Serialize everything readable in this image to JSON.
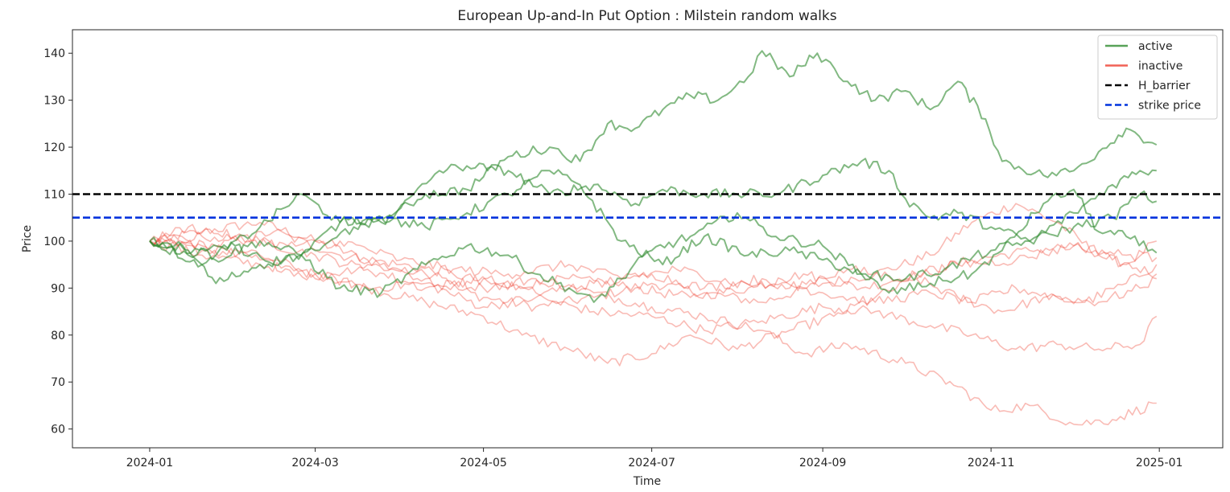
{
  "chart_data": {
    "type": "line",
    "title": "European Up-and-In Put Option : Milstein random walks",
    "xlabel": "Time",
    "ylabel": "Price",
    "x_start": "2024-01-01",
    "x_end": "2024-12-31",
    "xlim": [
      "2023-12-04",
      "2025-01-24"
    ],
    "ylim": [
      56,
      145
    ],
    "xticks": [
      "2024-01",
      "2024-03",
      "2024-05",
      "2024-07",
      "2024-09",
      "2024-11",
      "2025-01"
    ],
    "yticks": [
      60,
      70,
      80,
      90,
      100,
      110,
      120,
      130,
      140
    ],
    "grid": false,
    "legend_position": "top-right",
    "legend": [
      {
        "label": "active",
        "color": "#2e8b2e",
        "style": "solid"
      },
      {
        "label": "inactive",
        "color": "#ee3b2b",
        "style": "solid"
      },
      {
        "label": "H_barrier",
        "color": "#000000",
        "style": "dashed"
      },
      {
        "label": "strike price",
        "color": "#0033dd",
        "style": "dashed"
      }
    ],
    "hlines": [
      {
        "name": "H_barrier",
        "y": 110
      },
      {
        "name": "strike price",
        "y": 105
      }
    ],
    "series": [
      {
        "status": "active",
        "points": [
          [
            "2024-01-01",
            100
          ],
          [
            "2024-01-10",
            99
          ],
          [
            "2024-01-25",
            97
          ],
          [
            "2024-02-10",
            103
          ],
          [
            "2024-02-25",
            110
          ],
          [
            "2024-03-10",
            104
          ],
          [
            "2024-03-25",
            104
          ],
          [
            "2024-04-10",
            110
          ],
          [
            "2024-04-25",
            111
          ],
          [
            "2024-05-10",
            118
          ],
          [
            "2024-05-25",
            120
          ],
          [
            "2024-06-05",
            117
          ],
          [
            "2024-06-15",
            125
          ],
          [
            "2024-06-25",
            124
          ],
          [
            "2024-07-05",
            128
          ],
          [
            "2024-07-15",
            131
          ],
          [
            "2024-07-25",
            130
          ],
          [
            "2024-08-05",
            135
          ],
          [
            "2024-08-10",
            140.5
          ],
          [
            "2024-08-20",
            135
          ],
          [
            "2024-08-30",
            140
          ],
          [
            "2024-09-10",
            134
          ],
          [
            "2024-09-20",
            130
          ],
          [
            "2024-10-01",
            132
          ],
          [
            "2024-10-10",
            128
          ],
          [
            "2024-10-20",
            134
          ],
          [
            "2024-10-30",
            126
          ],
          [
            "2024-11-05",
            117
          ],
          [
            "2024-11-20",
            114
          ],
          [
            "2024-12-01",
            115
          ],
          [
            "2024-12-10",
            119
          ],
          [
            "2024-12-20",
            124
          ],
          [
            "2024-12-31",
            120.5
          ]
        ]
      },
      {
        "status": "active",
        "points": [
          [
            "2024-01-01",
            100
          ],
          [
            "2024-01-15",
            97
          ],
          [
            "2024-02-01",
            99
          ],
          [
            "2024-02-15",
            95
          ],
          [
            "2024-03-01",
            98
          ],
          [
            "2024-03-15",
            103
          ],
          [
            "2024-04-01",
            107
          ],
          [
            "2024-04-15",
            115
          ],
          [
            "2024-04-25",
            116
          ],
          [
            "2024-05-10",
            115
          ],
          [
            "2024-05-25",
            110
          ],
          [
            "2024-06-10",
            112
          ],
          [
            "2024-06-25",
            108
          ],
          [
            "2024-07-05",
            111
          ],
          [
            "2024-07-20",
            110
          ],
          [
            "2024-08-01",
            110
          ],
          [
            "2024-08-15",
            110
          ],
          [
            "2024-09-01",
            114
          ],
          [
            "2024-09-15",
            117
          ],
          [
            "2024-09-25",
            115
          ],
          [
            "2024-10-01",
            109
          ],
          [
            "2024-10-10",
            105
          ],
          [
            "2024-10-20",
            106
          ],
          [
            "2024-11-01",
            103
          ],
          [
            "2024-11-15",
            100
          ],
          [
            "2024-12-01",
            106
          ],
          [
            "2024-12-15",
            112
          ],
          [
            "2024-12-25",
            115
          ],
          [
            "2024-12-31",
            115
          ]
        ]
      },
      {
        "status": "active",
        "points": [
          [
            "2024-01-01",
            100
          ],
          [
            "2024-01-20",
            95
          ],
          [
            "2024-02-10",
            100
          ],
          [
            "2024-02-25",
            97
          ],
          [
            "2024-03-10",
            90
          ],
          [
            "2024-03-25",
            89
          ],
          [
            "2024-04-10",
            95
          ],
          [
            "2024-04-25",
            99
          ],
          [
            "2024-05-10",
            97
          ],
          [
            "2024-05-20",
            93
          ],
          [
            "2024-06-01",
            90
          ],
          [
            "2024-06-10",
            87
          ],
          [
            "2024-06-20",
            92
          ],
          [
            "2024-07-01",
            98
          ],
          [
            "2024-07-15",
            101
          ],
          [
            "2024-08-01",
            106
          ],
          [
            "2024-08-15",
            101
          ],
          [
            "2024-09-01",
            99
          ],
          [
            "2024-09-15",
            93
          ],
          [
            "2024-10-01",
            92
          ],
          [
            "2024-10-15",
            94
          ],
          [
            "2024-11-01",
            98
          ],
          [
            "2024-11-15",
            100
          ],
          [
            "2024-12-01",
            103
          ],
          [
            "2024-12-15",
            105
          ],
          [
            "2024-12-25",
            110
          ],
          [
            "2024-12-31",
            108.5
          ]
        ]
      },
      {
        "status": "active",
        "points": [
          [
            "2024-01-01",
            100
          ],
          [
            "2024-01-15",
            98
          ],
          [
            "2024-01-25",
            91
          ],
          [
            "2024-02-10",
            95
          ],
          [
            "2024-02-25",
            97
          ],
          [
            "2024-03-10",
            104
          ],
          [
            "2024-03-25",
            105
          ],
          [
            "2024-04-10",
            103
          ],
          [
            "2024-04-25",
            106
          ],
          [
            "2024-05-10",
            110
          ],
          [
            "2024-05-25",
            115
          ],
          [
            "2024-06-05",
            112
          ],
          [
            "2024-06-20",
            100
          ],
          [
            "2024-07-05",
            95
          ],
          [
            "2024-07-20",
            101
          ],
          [
            "2024-08-05",
            97
          ],
          [
            "2024-08-20",
            98
          ],
          [
            "2024-09-01",
            96
          ],
          [
            "2024-09-15",
            93
          ],
          [
            "2024-09-25",
            89
          ],
          [
            "2024-10-10",
            91
          ],
          [
            "2024-10-25",
            93
          ],
          [
            "2024-11-05",
            98
          ],
          [
            "2024-11-20",
            108
          ],
          [
            "2024-12-01",
            111
          ],
          [
            "2024-12-10",
            102
          ],
          [
            "2024-12-20",
            101
          ],
          [
            "2024-12-31",
            97.5
          ]
        ]
      },
      {
        "status": "inactive",
        "points": [
          [
            "2024-01-01",
            100
          ],
          [
            "2024-01-20",
            102
          ],
          [
            "2024-02-10",
            104
          ],
          [
            "2024-03-01",
            100
          ],
          [
            "2024-03-20",
            96
          ],
          [
            "2024-04-10",
            92
          ],
          [
            "2024-05-01",
            88
          ],
          [
            "2024-05-20",
            86
          ],
          [
            "2024-06-10",
            88
          ],
          [
            "2024-07-01",
            91
          ],
          [
            "2024-07-20",
            89
          ],
          [
            "2024-08-10",
            87
          ],
          [
            "2024-09-01",
            91
          ],
          [
            "2024-09-20",
            93
          ],
          [
            "2024-10-10",
            97
          ],
          [
            "2024-10-25",
            104
          ],
          [
            "2024-11-10",
            108
          ],
          [
            "2024-11-25",
            104
          ],
          [
            "2024-12-10",
            97
          ],
          [
            "2024-12-20",
            95
          ],
          [
            "2024-12-31",
            100
          ]
        ]
      },
      {
        "status": "inactive",
        "points": [
          [
            "2024-01-01",
            100
          ],
          [
            "2024-01-25",
            99
          ],
          [
            "2024-02-15",
            102
          ],
          [
            "2024-03-10",
            97
          ],
          [
            "2024-04-01",
            95
          ],
          [
            "2024-04-20",
            93
          ],
          [
            "2024-05-10",
            90
          ],
          [
            "2024-06-01",
            92
          ],
          [
            "2024-06-25",
            90
          ],
          [
            "2024-07-15",
            88
          ],
          [
            "2024-08-05",
            90
          ],
          [
            "2024-08-25",
            93
          ],
          [
            "2024-09-15",
            90
          ],
          [
            "2024-10-05",
            93
          ],
          [
            "2024-10-25",
            96
          ],
          [
            "2024-11-15",
            98
          ],
          [
            "2024-12-01",
            99
          ],
          [
            "2024-12-15",
            96
          ],
          [
            "2024-12-31",
            93
          ]
        ]
      },
      {
        "status": "inactive",
        "points": [
          [
            "2024-01-01",
            100
          ],
          [
            "2024-01-20",
            97
          ],
          [
            "2024-02-10",
            95
          ],
          [
            "2024-03-01",
            93
          ],
          [
            "2024-03-20",
            90
          ],
          [
            "2024-04-10",
            87
          ],
          [
            "2024-05-01",
            84
          ],
          [
            "2024-05-15",
            80
          ],
          [
            "2024-06-01",
            77
          ],
          [
            "2024-06-15",
            74
          ],
          [
            "2024-07-01",
            76
          ],
          [
            "2024-07-15",
            80
          ],
          [
            "2024-08-01",
            77
          ],
          [
            "2024-08-20",
            81
          ],
          [
            "2024-09-05",
            84
          ],
          [
            "2024-09-20",
            88
          ],
          [
            "2024-10-05",
            92
          ],
          [
            "2024-10-20",
            88
          ],
          [
            "2024-11-05",
            85
          ],
          [
            "2024-11-20",
            88
          ],
          [
            "2024-12-05",
            87
          ],
          [
            "2024-12-20",
            91
          ],
          [
            "2024-12-31",
            95
          ]
        ]
      },
      {
        "status": "inactive",
        "points": [
          [
            "2024-01-01",
            100
          ],
          [
            "2024-01-20",
            99
          ],
          [
            "2024-02-10",
            96
          ],
          [
            "2024-03-01",
            92
          ],
          [
            "2024-03-20",
            95
          ],
          [
            "2024-04-10",
            93
          ],
          [
            "2024-05-01",
            90
          ],
          [
            "2024-05-20",
            92
          ],
          [
            "2024-06-10",
            89
          ],
          [
            "2024-07-01",
            86
          ],
          [
            "2024-07-20",
            84
          ],
          [
            "2024-08-10",
            81
          ],
          [
            "2024-08-25",
            76
          ],
          [
            "2024-09-10",
            78
          ],
          [
            "2024-10-01",
            74
          ],
          [
            "2024-10-20",
            69
          ],
          [
            "2024-11-01",
            64
          ],
          [
            "2024-11-15",
            65
          ],
          [
            "2024-12-01",
            61
          ],
          [
            "2024-12-15",
            62
          ],
          [
            "2024-12-31",
            65.5
          ]
        ]
      },
      {
        "status": "inactive",
        "points": [
          [
            "2024-01-01",
            100
          ],
          [
            "2024-01-20",
            98
          ],
          [
            "2024-02-10",
            97
          ],
          [
            "2024-03-01",
            93
          ],
          [
            "2024-03-20",
            90
          ],
          [
            "2024-04-10",
            91
          ],
          [
            "2024-05-01",
            86
          ],
          [
            "2024-05-20",
            88
          ],
          [
            "2024-06-10",
            85
          ],
          [
            "2024-07-01",
            84
          ],
          [
            "2024-07-20",
            81
          ],
          [
            "2024-08-10",
            83
          ],
          [
            "2024-09-01",
            86
          ],
          [
            "2024-09-20",
            85
          ],
          [
            "2024-10-10",
            82
          ],
          [
            "2024-10-25",
            80
          ],
          [
            "2024-11-10",
            77
          ],
          [
            "2024-11-25",
            78
          ],
          [
            "2024-12-10",
            77
          ],
          [
            "2024-12-25",
            78
          ],
          [
            "2024-12-31",
            84
          ]
        ]
      },
      {
        "status": "inactive",
        "points": [
          [
            "2024-01-01",
            100
          ],
          [
            "2024-01-20",
            101
          ],
          [
            "2024-02-10",
            100
          ],
          [
            "2024-03-01",
            97
          ],
          [
            "2024-03-20",
            94
          ],
          [
            "2024-04-10",
            90
          ],
          [
            "2024-05-01",
            92
          ],
          [
            "2024-05-20",
            89
          ],
          [
            "2024-06-10",
            91
          ],
          [
            "2024-07-01",
            93
          ],
          [
            "2024-07-20",
            90
          ],
          [
            "2024-08-10",
            92
          ],
          [
            "2024-09-01",
            89
          ],
          [
            "2024-09-20",
            87
          ],
          [
            "2024-10-10",
            89
          ],
          [
            "2024-10-25",
            87
          ],
          [
            "2024-11-10",
            90
          ],
          [
            "2024-11-25",
            88
          ],
          [
            "2024-12-10",
            87
          ],
          [
            "2024-12-25",
            90
          ],
          [
            "2024-12-31",
            92
          ]
        ]
      },
      {
        "status": "inactive",
        "points": [
          [
            "2024-01-01",
            100
          ],
          [
            "2024-01-15",
            103
          ],
          [
            "2024-02-01",
            101
          ],
          [
            "2024-02-20",
            99
          ],
          [
            "2024-03-10",
            100
          ],
          [
            "2024-04-01",
            96
          ],
          [
            "2024-04-20",
            94
          ],
          [
            "2024-05-10",
            93
          ],
          [
            "2024-06-01",
            95
          ],
          [
            "2024-06-20",
            92
          ],
          [
            "2024-07-10",
            94
          ],
          [
            "2024-08-01",
            91
          ],
          [
            "2024-08-20",
            90
          ],
          [
            "2024-09-10",
            94
          ],
          [
            "2024-10-01",
            92
          ],
          [
            "2024-10-20",
            95
          ],
          [
            "2024-11-10",
            96
          ],
          [
            "2024-12-01",
            99
          ],
          [
            "2024-12-20",
            97
          ],
          [
            "2024-12-31",
            96.5
          ]
        ]
      }
    ]
  }
}
